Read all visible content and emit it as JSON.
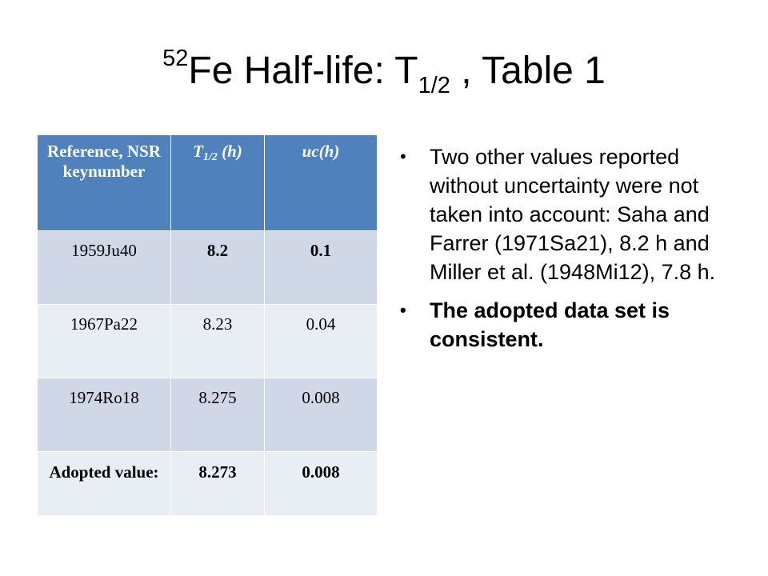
{
  "slide": {
    "title": {
      "sup": "52",
      "pre": "Fe Half-life: T",
      "sub": "1/2",
      "post": " , Table 1"
    },
    "table": {
      "headers": {
        "ref": "Reference, NSR keynumber",
        "t_main": "T",
        "t_sub": "1/2",
        "t_unit": " (h)",
        "uc": "uc(h)"
      },
      "rows": [
        {
          "ref": "1959Ju40",
          "t": "8.2",
          "uc": "0.1"
        },
        {
          "ref": "1967Pa22",
          "t": "8.23",
          "uc": "0.04"
        },
        {
          "ref": "1974Ro18",
          "t": "8.275",
          "uc": "0.008"
        },
        {
          "ref": "Adopted value:",
          "t": "8.273",
          "uc": "0.008"
        }
      ]
    },
    "bullets": [
      "Two other values reported without uncertainty were not taken into account: Saha and Farrer (1971Sa21), 8.2 h and Miller et al. (1948Mi12), 7.8 h.",
      "The adopted data set is consistent."
    ],
    "bullet_symbol": "•"
  }
}
